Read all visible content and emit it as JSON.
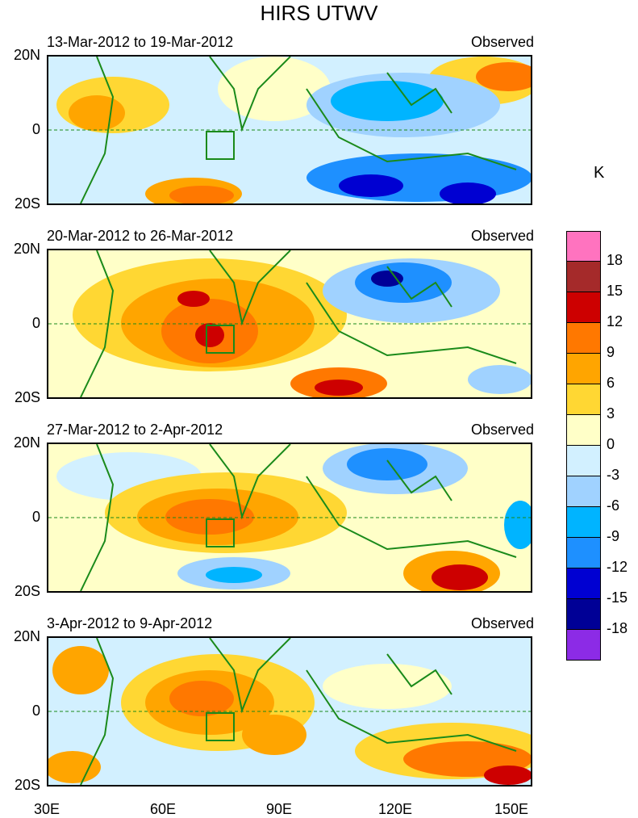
{
  "title": "HIRS UTWV",
  "unit": "K",
  "panels": [
    {
      "period": "13-Mar-2012 to 19-Mar-2012",
      "tag": "Observed"
    },
    {
      "period": "20-Mar-2012 to 26-Mar-2012",
      "tag": "Observed"
    },
    {
      "period": "27-Mar-2012 to 2-Apr-2012",
      "tag": "Observed"
    },
    {
      "period": "3-Apr-2012 to 9-Apr-2012",
      "tag": "Observed"
    }
  ],
  "lat_labels": {
    "north": "20N",
    "equator": "0",
    "south": "20S"
  },
  "lon_labels": [
    "30E",
    "60E",
    "90E",
    "120E",
    "150E"
  ],
  "colorbar": {
    "labels": [
      "18",
      "15",
      "12",
      "9",
      "6",
      "3",
      "0",
      "-3",
      "-6",
      "-9",
      "-12",
      "-15",
      "-18"
    ],
    "colors": [
      "#ff73bf",
      "#a52a2a",
      "#cd0000",
      "#ff7800",
      "#ffa500",
      "#ffd733",
      "#ffffc8",
      "#d2f0ff",
      "#a0d2ff",
      "#00b4ff",
      "#1e90ff",
      "#0000d2",
      "#000096",
      "#8c2be6"
    ]
  },
  "colors": {
    "coast": "#1a8a1a",
    "box": "#1a8a1a",
    "equator": "#1a8a1a"
  }
}
